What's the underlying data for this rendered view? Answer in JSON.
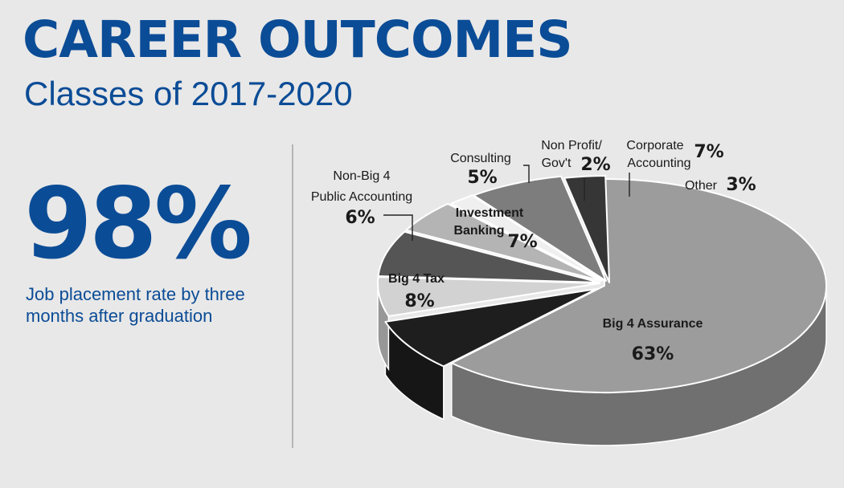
{
  "header": {
    "title": "CAREER OUTCOMES",
    "subtitle": "Classes of 2017-2020"
  },
  "stat": {
    "value": "98%",
    "caption": "Job placement rate by three months after graduation"
  },
  "colors": {
    "brand": "#0b4c96",
    "background": "#e8e8e8"
  },
  "chart_data": {
    "type": "pie",
    "title": "",
    "labels": [
      "Big 4 Assurance",
      "Big 4 Tax",
      "Non-Big 4 Public Accounting",
      "Investment Banking",
      "Consulting",
      "Non Profit/ Gov't",
      "Corporate Accounting",
      "Other"
    ],
    "values": [
      63,
      8,
      6,
      7,
      5,
      2,
      7,
      3
    ],
    "value_labels": [
      "63%",
      "8%",
      "6%",
      "7%",
      "5%",
      "2%",
      "7%",
      "3%"
    ],
    "colors": [
      "#9c9c9c",
      "#1e1e1e",
      "#d2d2d2",
      "#555555",
      "#b4b4b4",
      "#efefef",
      "#7d7d7d",
      "#363636"
    ],
    "style": "3d exploded"
  }
}
